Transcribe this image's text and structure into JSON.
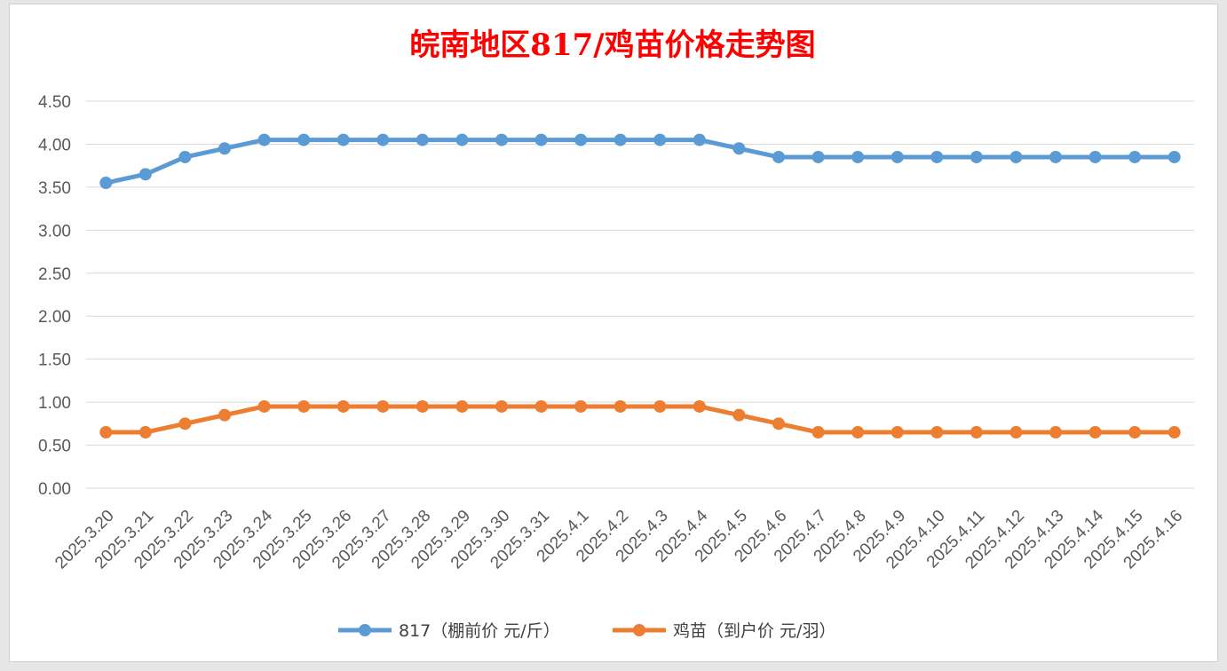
{
  "colors": {
    "title": "#ff0000",
    "series_817": "#5b9bd5",
    "series_chick": "#ed7d31",
    "grid": "#d9d9d9",
    "tick_text": "#595959"
  },
  "chart_data": {
    "type": "line",
    "title": "皖南地区817/鸡苗价格走势图",
    "xlabel": "",
    "ylabel": "",
    "ylim": [
      0,
      4.5
    ],
    "y_ticks": [
      "0.00",
      "0.50",
      "1.00",
      "1.50",
      "2.00",
      "2.50",
      "3.00",
      "3.50",
      "4.00",
      "4.50"
    ],
    "grid": "horizontal",
    "legend_position": "bottom",
    "categories": [
      "2025.3.20",
      "2025.3.21",
      "2025.3.22",
      "2025.3.23",
      "2025.3.24",
      "2025.3.25",
      "2025.3.26",
      "2025.3.27",
      "2025.3.28",
      "2025.3.29",
      "2025.3.30",
      "2025.3.31",
      "2025.4.1",
      "2025.4.2",
      "2025.4.3",
      "2025.4.4",
      "2025.4.5",
      "2025.4.6",
      "2025.4.7",
      "2025.4.8",
      "2025.4.9",
      "2025.4.10",
      "2025.4.11",
      "2025.4.12",
      "2025.4.13",
      "2025.4.14",
      "2025.4.15",
      "2025.4.16"
    ],
    "series": [
      {
        "name": "817（棚前价 元/斤）",
        "color": "#5b9bd5",
        "values": [
          3.55,
          3.65,
          3.85,
          3.95,
          4.05,
          4.05,
          4.05,
          4.05,
          4.05,
          4.05,
          4.05,
          4.05,
          4.05,
          4.05,
          4.05,
          4.05,
          3.95,
          3.85,
          3.85,
          3.85,
          3.85,
          3.85,
          3.85,
          3.85,
          3.85,
          3.85,
          3.85,
          3.85
        ]
      },
      {
        "name": "鸡苗（到户价 元/羽）",
        "color": "#ed7d31",
        "values": [
          0.65,
          0.65,
          0.75,
          0.85,
          0.95,
          0.95,
          0.95,
          0.95,
          0.95,
          0.95,
          0.95,
          0.95,
          0.95,
          0.95,
          0.95,
          0.95,
          0.85,
          0.75,
          0.65,
          0.65,
          0.65,
          0.65,
          0.65,
          0.65,
          0.65,
          0.65,
          0.65,
          0.65
        ]
      }
    ]
  }
}
